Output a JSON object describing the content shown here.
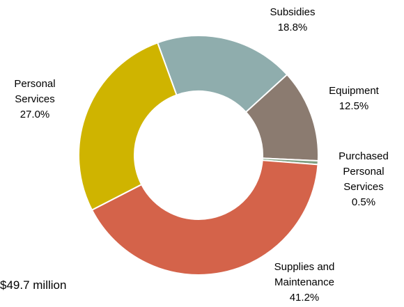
{
  "chart_data": {
    "type": "pie",
    "donut": true,
    "slices": [
      {
        "name": "Subsidies",
        "label_lines": [
          "Subsidies"
        ],
        "value": 18.8,
        "display": "18.8%",
        "color": "#8fadad"
      },
      {
        "name": "Equipment",
        "label_lines": [
          "Equipment"
        ],
        "value": 12.5,
        "display": "12.5%",
        "color": "#8b7b70"
      },
      {
        "name": "Purchased Personal Services",
        "label_lines": [
          "Purchased",
          "Personal",
          "Services"
        ],
        "value": 0.5,
        "display": "0.5%",
        "color": "#7fa082"
      },
      {
        "name": "Supplies and Maintenance",
        "label_lines": [
          "Supplies and",
          "Maintenance"
        ],
        "value": 41.2,
        "display": "41.2%",
        "color": "#d4634a"
      },
      {
        "name": "Personal Services",
        "label_lines": [
          "Personal",
          "Services"
        ],
        "value": 27.0,
        "display": "27.0%",
        "color": "#cfb400"
      }
    ],
    "footnote": "$49.7 million"
  }
}
